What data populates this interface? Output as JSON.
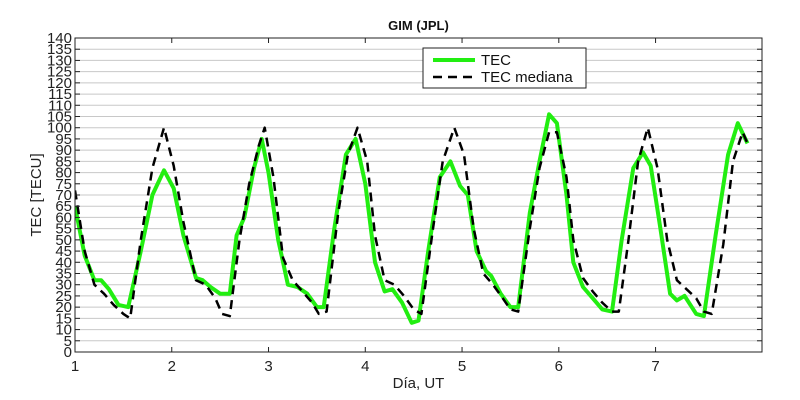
{
  "chart_data": {
    "type": "line",
    "title": "GIM (JPL)",
    "xlabel": "Día, UT",
    "ylabel": "TEC [TECU]",
    "xlim": [
      1,
      8.1
    ],
    "ylim": [
      0,
      140
    ],
    "xticks": [
      1,
      2,
      3,
      4,
      5,
      6,
      7
    ],
    "yticks": [
      0,
      5,
      10,
      15,
      20,
      25,
      30,
      35,
      40,
      45,
      50,
      55,
      60,
      65,
      70,
      75,
      80,
      85,
      90,
      95,
      100,
      105,
      110,
      115,
      120,
      125,
      130,
      135,
      140
    ],
    "grid": "horizontal",
    "legend_position": "top-right",
    "series": [
      {
        "name": "TEC",
        "color": "#22ee11",
        "style": "solid",
        "points": [
          [
            1.0,
            65
          ],
          [
            1.1,
            43
          ],
          [
            1.2,
            32
          ],
          [
            1.27,
            32
          ],
          [
            1.35,
            28
          ],
          [
            1.45,
            21
          ],
          [
            1.55,
            20
          ],
          [
            1.68,
            45
          ],
          [
            1.8,
            70
          ],
          [
            1.92,
            81
          ],
          [
            2.02,
            73
          ],
          [
            2.12,
            52
          ],
          [
            2.25,
            33
          ],
          [
            2.32,
            32
          ],
          [
            2.4,
            29
          ],
          [
            2.5,
            26
          ],
          [
            2.6,
            26
          ],
          [
            2.67,
            52
          ],
          [
            2.75,
            60
          ],
          [
            2.85,
            82
          ],
          [
            2.93,
            95
          ],
          [
            3.0,
            80
          ],
          [
            3.1,
            50
          ],
          [
            3.2,
            30
          ],
          [
            3.3,
            29
          ],
          [
            3.4,
            26
          ],
          [
            3.5,
            20
          ],
          [
            3.57,
            20
          ],
          [
            3.68,
            55
          ],
          [
            3.8,
            88
          ],
          [
            3.9,
            95
          ],
          [
            4.0,
            75
          ],
          [
            4.1,
            40
          ],
          [
            4.2,
            27
          ],
          [
            4.28,
            28
          ],
          [
            4.38,
            22
          ],
          [
            4.48,
            13
          ],
          [
            4.55,
            14
          ],
          [
            4.65,
            45
          ],
          [
            4.77,
            78
          ],
          [
            4.88,
            85
          ],
          [
            4.98,
            74
          ],
          [
            5.06,
            70
          ],
          [
            5.15,
            45
          ],
          [
            5.25,
            36
          ],
          [
            5.3,
            34
          ],
          [
            5.4,
            26
          ],
          [
            5.5,
            20
          ],
          [
            5.58,
            20
          ],
          [
            5.7,
            62
          ],
          [
            5.8,
            85
          ],
          [
            5.9,
            106
          ],
          [
            5.98,
            102
          ],
          [
            6.08,
            70
          ],
          [
            6.15,
            40
          ],
          [
            6.25,
            29
          ],
          [
            6.35,
            24
          ],
          [
            6.45,
            19
          ],
          [
            6.55,
            18
          ],
          [
            6.65,
            50
          ],
          [
            6.77,
            82
          ],
          [
            6.87,
            89
          ],
          [
            6.95,
            83
          ],
          [
            7.05,
            55
          ],
          [
            7.15,
            26
          ],
          [
            7.22,
            23
          ],
          [
            7.3,
            25
          ],
          [
            7.42,
            17
          ],
          [
            7.5,
            16
          ],
          [
            7.62,
            52
          ],
          [
            7.75,
            88
          ],
          [
            7.85,
            102
          ],
          [
            7.95,
            93
          ]
        ]
      },
      {
        "name": "TEC mediana",
        "color": "#000000",
        "style": "dashed",
        "points": [
          [
            1.0,
            72
          ],
          [
            1.1,
            45
          ],
          [
            1.2,
            30
          ],
          [
            1.3,
            26
          ],
          [
            1.4,
            21
          ],
          [
            1.5,
            17
          ],
          [
            1.57,
            15
          ],
          [
            1.68,
            50
          ],
          [
            1.8,
            82
          ],
          [
            1.92,
            100
          ],
          [
            2.02,
            83
          ],
          [
            2.12,
            58
          ],
          [
            2.25,
            32
          ],
          [
            2.35,
            30
          ],
          [
            2.45,
            24
          ],
          [
            2.52,
            17
          ],
          [
            2.6,
            16
          ],
          [
            2.7,
            50
          ],
          [
            2.8,
            75
          ],
          [
            2.9,
            92
          ],
          [
            2.96,
            100
          ],
          [
            3.05,
            78
          ],
          [
            3.15,
            42
          ],
          [
            3.25,
            32
          ],
          [
            3.35,
            27
          ],
          [
            3.45,
            22
          ],
          [
            3.52,
            17
          ],
          [
            3.6,
            18
          ],
          [
            3.72,
            62
          ],
          [
            3.82,
            88
          ],
          [
            3.92,
            100
          ],
          [
            4.02,
            85
          ],
          [
            4.1,
            52
          ],
          [
            4.2,
            32
          ],
          [
            4.3,
            30
          ],
          [
            4.4,
            25
          ],
          [
            4.5,
            19
          ],
          [
            4.58,
            17
          ],
          [
            4.7,
            55
          ],
          [
            4.8,
            85
          ],
          [
            4.92,
            100
          ],
          [
            5.02,
            88
          ],
          [
            5.12,
            55
          ],
          [
            5.22,
            35
          ],
          [
            5.32,
            30
          ],
          [
            5.42,
            24
          ],
          [
            5.5,
            19
          ],
          [
            5.58,
            18
          ],
          [
            5.7,
            55
          ],
          [
            5.8,
            82
          ],
          [
            5.9,
            98
          ],
          [
            5.98,
            98
          ],
          [
            6.08,
            78
          ],
          [
            6.15,
            50
          ],
          [
            6.25,
            33
          ],
          [
            6.35,
            27
          ],
          [
            6.45,
            22
          ],
          [
            6.55,
            18
          ],
          [
            6.62,
            18
          ],
          [
            6.72,
            50
          ],
          [
            6.82,
            85
          ],
          [
            6.92,
            100
          ],
          [
            7.02,
            82
          ],
          [
            7.12,
            50
          ],
          [
            7.22,
            32
          ],
          [
            7.32,
            28
          ],
          [
            7.42,
            24
          ],
          [
            7.5,
            18
          ],
          [
            7.58,
            17
          ],
          [
            7.7,
            48
          ],
          [
            7.8,
            85
          ],
          [
            7.9,
            98
          ],
          [
            7.95,
            93
          ]
        ]
      }
    ]
  }
}
